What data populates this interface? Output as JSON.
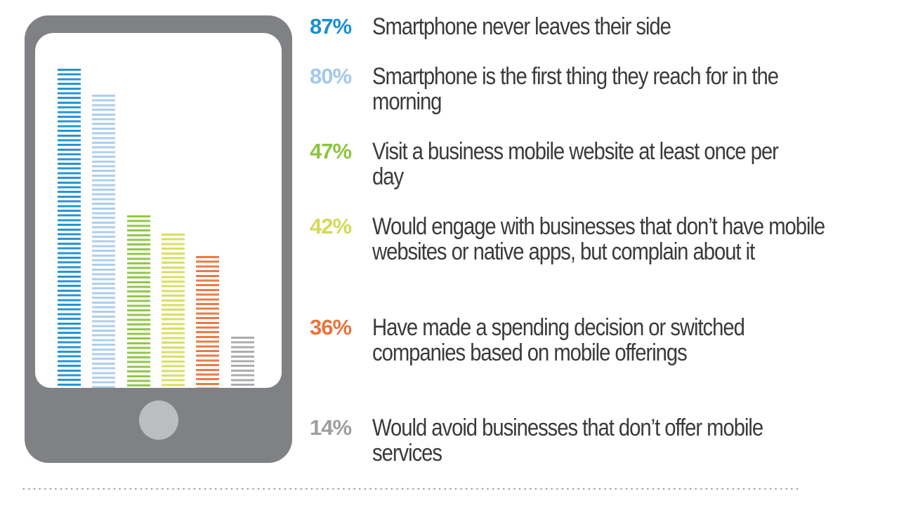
{
  "chart_data": {
    "type": "bar",
    "title": "",
    "xlabel": "",
    "ylabel": "",
    "ylim": [
      0,
      100
    ],
    "grid": false,
    "legend_position": "right",
    "categories": [
      "Smartphone never leaves their side",
      "Smartphone is the first thing they reach for in the morning",
      "Visit a business mobile website at least once per day",
      "Would engage with businesses that don’t have mobile websites or native apps, but complain about it",
      "Have made a spending decision or switched companies based on mobile offerings",
      "Would avoid businesses that don’t offer mobile services"
    ],
    "values": [
      87,
      80,
      47,
      42,
      36,
      14
    ],
    "colors": [
      "#1b8fd2",
      "#a9cbeb",
      "#8cc43f",
      "#d7dc5a",
      "#e8743a",
      "#a7a8aa"
    ]
  },
  "stats": [
    {
      "pct": "87%",
      "text": "Smartphone never leaves their side",
      "color": "#1b8fd2",
      "value": 87
    },
    {
      "pct": "80%",
      "text": "Smartphone is the first thing they reach for in the morning",
      "color": "#a3c9ec",
      "value": 80
    },
    {
      "pct": "47%",
      "text": "Visit a business mobile website at least once per day",
      "color": "#8cc43f",
      "value": 47
    },
    {
      "pct": "42%",
      "text": "Would engage with businesses that don’t have mobile websites or native apps, but complain about it",
      "color": "#d4d95a",
      "value": 42
    },
    {
      "pct": "36%",
      "text": "Have made a spending decision or switched companies based on mobile offerings",
      "color": "#e8743a",
      "value": 36
    },
    {
      "pct": "14%",
      "text": "Would avoid businesses that don’t offer mobile services",
      "color": "#9d9ea0",
      "value": 14
    }
  ],
  "phone": {
    "body_color": "#808184",
    "screen_color": "#ffffff",
    "home_button_color": "#bcbdc0"
  }
}
